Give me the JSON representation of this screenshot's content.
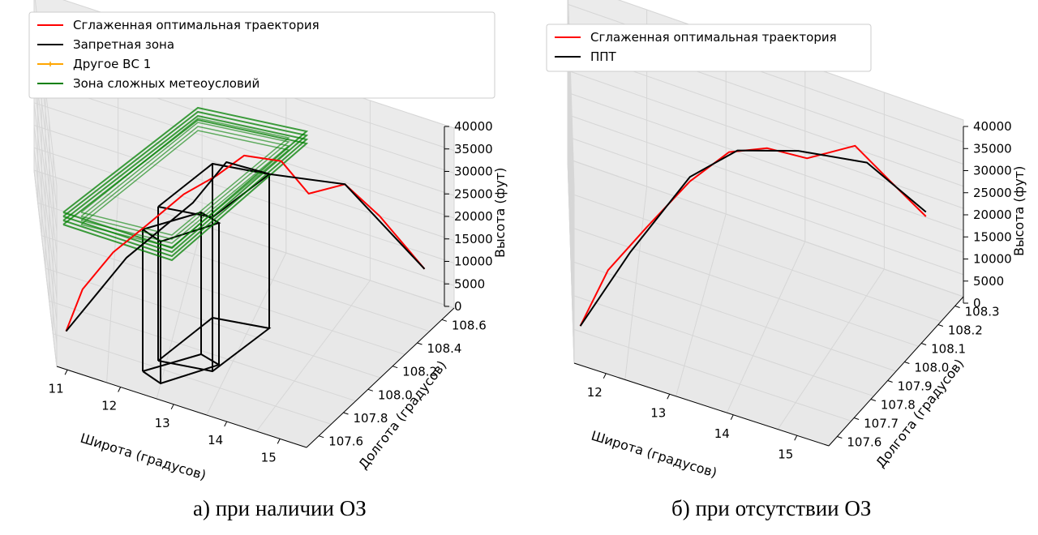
{
  "figure": {
    "caption_a": "а) при наличии ОЗ",
    "caption_b": "б) при отсутствии ОЗ"
  },
  "chart_data": [
    {
      "type": "line3d",
      "panel": "a",
      "xlabel": "Широта (градусов)",
      "ylabel": "Долгота (градусов)",
      "zlabel": "Высота (фут)",
      "x_ticks": [
        "11",
        "12",
        "13",
        "14",
        "15"
      ],
      "y_ticks": [
        "107.6",
        "107.8",
        "108.0",
        "108.2",
        "108.4",
        "108.6"
      ],
      "z_ticks": [
        "0",
        "5000",
        "10000",
        "15000",
        "20000",
        "25000",
        "30000",
        "35000",
        "40000"
      ],
      "xlim": [
        10.8,
        15.5
      ],
      "ylim": [
        107.5,
        108.7
      ],
      "zlim": [
        0,
        40000
      ],
      "legend_position": "top-left",
      "legend": [
        {
          "label": "Сглаженная оптимальная траектория",
          "color": "#ff0000"
        },
        {
          "label": "Запретная зона",
          "color": "#000000"
        },
        {
          "label": "Другое ВС 1",
          "color": "#ffa500"
        },
        {
          "label": "Зона сложных метеоусловий",
          "color": "#008000"
        }
      ],
      "series": [
        {
          "name": "Сглаженная оптимальная траектория",
          "color": "#ff0000",
          "points": [
            [
              11.0,
              107.6,
              5000
            ],
            [
              11.3,
              107.7,
              12000
            ],
            [
              11.8,
              107.8,
              19000
            ],
            [
              12.3,
              107.9,
              24000
            ],
            [
              12.8,
              108.0,
              30000
            ],
            [
              13.2,
              108.1,
              33000
            ],
            [
              13.5,
              108.2,
              36000
            ],
            [
              13.9,
              108.3,
              34000
            ],
            [
              14.2,
              108.35,
              27000
            ],
            [
              14.6,
              108.4,
              30000
            ],
            [
              14.9,
              108.5,
              22000
            ],
            [
              15.3,
              108.6,
              10000
            ]
          ]
        },
        {
          "name": "Запретная зона",
          "color": "#000000",
          "points": [
            [
              11.0,
              107.6,
              5000
            ],
            [
              12.0,
              107.85,
              17000
            ],
            [
              12.9,
              108.05,
              27000
            ],
            [
              13.3,
              108.15,
              35000
            ],
            [
              13.8,
              108.25,
              32000
            ],
            [
              14.6,
              108.4,
              30000
            ],
            [
              15.3,
              108.6,
              10000
            ]
          ]
        }
      ]
    },
    {
      "type": "line3d",
      "panel": "b",
      "xlabel": "Широта (градусов)",
      "ylabel": "Долгота (градусов)",
      "zlabel": "Высота (фут)",
      "x_ticks": [
        "12",
        "13",
        "14",
        "15"
      ],
      "y_ticks": [
        "107.6",
        "107.7",
        "107.8",
        "107.9",
        "108.0",
        "108.1",
        "108.2",
        "108.3"
      ],
      "z_ticks": [
        "0",
        "5000",
        "10000",
        "15000",
        "20000",
        "25000",
        "30000",
        "35000",
        "40000"
      ],
      "xlim": [
        11.5,
        15.5
      ],
      "ylim": [
        107.55,
        108.35
      ],
      "zlim": [
        0,
        40000
      ],
      "legend_position": "top-left",
      "legend": [
        {
          "label": "Сглаженная оптимальная траектория",
          "color": "#ff0000"
        },
        {
          "label": "ППТ",
          "color": "#000000"
        }
      ],
      "series": [
        {
          "name": "Сглаженная оптимальная траектория",
          "color": "#ff0000",
          "points": [
            [
              11.6,
              107.6,
              6000
            ],
            [
              12.0,
              107.7,
              15000
            ],
            [
              12.5,
              107.8,
              22000
            ],
            [
              13.0,
              107.9,
              30000
            ],
            [
              13.4,
              108.0,
              34000
            ],
            [
              13.8,
              108.05,
              35000
            ],
            [
              14.2,
              108.1,
              33000
            ],
            [
              14.6,
              108.2,
              34000
            ],
            [
              14.9,
              108.25,
              26000
            ],
            [
              15.2,
              108.3,
              18000
            ]
          ]
        },
        {
          "name": "ППТ",
          "color": "#000000",
          "points": [
            [
              11.6,
              107.6,
              6000
            ],
            [
              12.3,
              107.75,
              18000
            ],
            [
              13.0,
              107.9,
              31000
            ],
            [
              13.5,
              108.0,
              35000
            ],
            [
              14.1,
              108.1,
              34000
            ],
            [
              14.7,
              108.22,
              30000
            ],
            [
              15.2,
              108.3,
              19000
            ]
          ]
        }
      ]
    }
  ]
}
